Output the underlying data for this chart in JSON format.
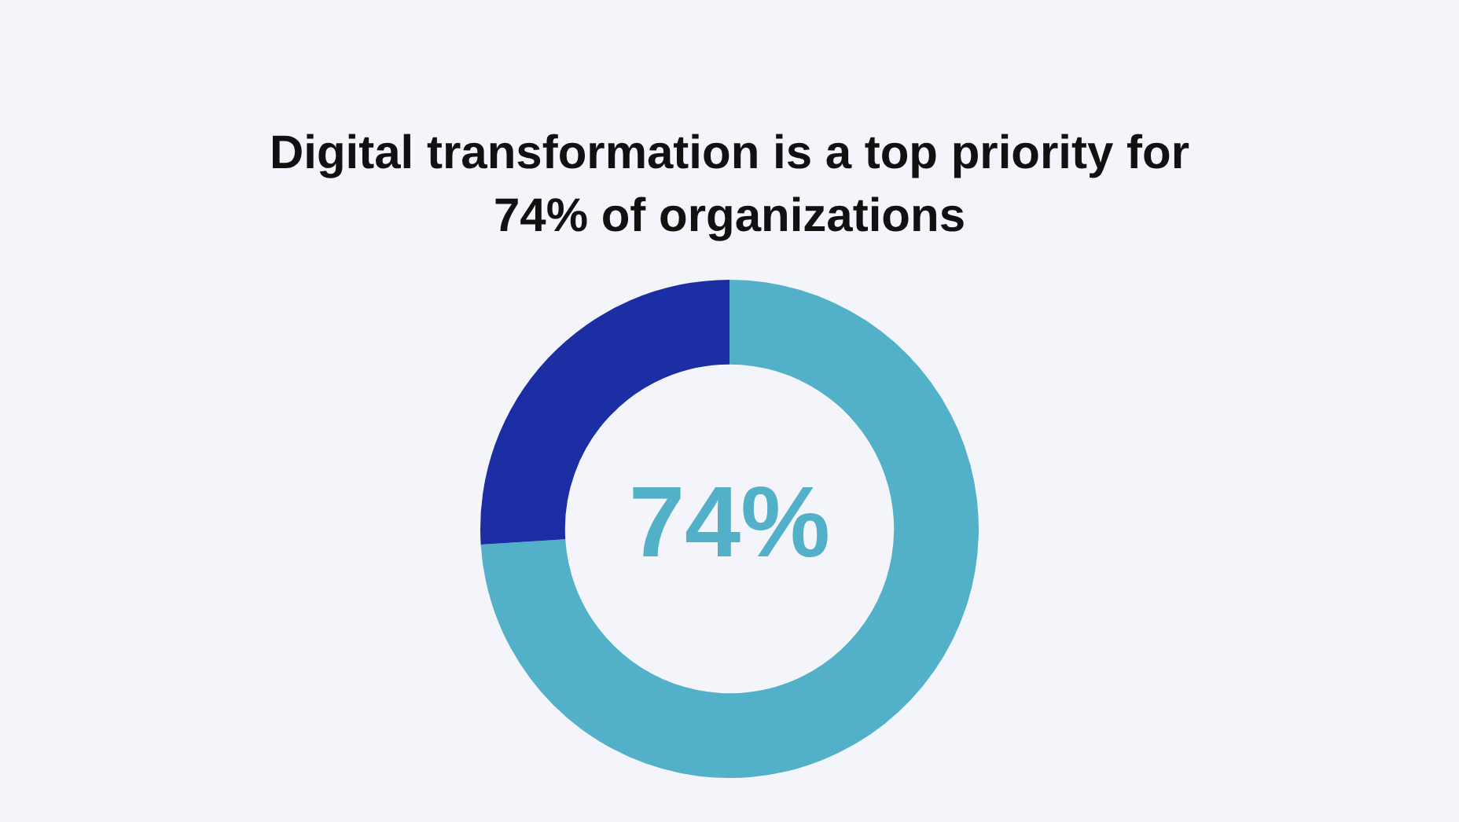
{
  "chart_data": {
    "type": "donut",
    "title": "Digital transformation is a top priority for 74% of organizations",
    "categories": [
      null,
      null
    ],
    "values": [
      74,
      26
    ],
    "colors": [
      "#52b0c8",
      "#1c2ea4"
    ],
    "value_labels": [
      "74%",
      null
    ],
    "legend": false
  }
}
